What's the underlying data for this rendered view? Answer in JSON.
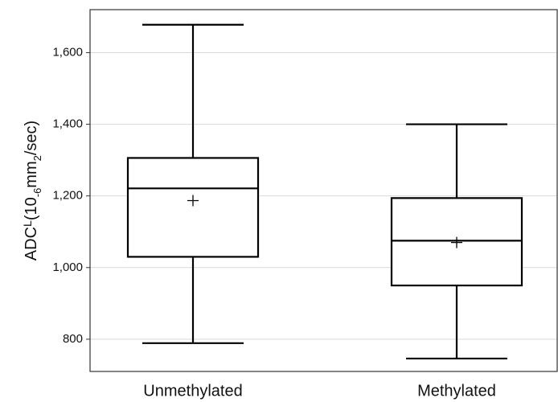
{
  "chart_data": {
    "type": "box",
    "ylabel": [
      "ADC",
      "L",
      "(10",
      "-6",
      "mm",
      "2",
      "/sec)"
    ],
    "categories": [
      "Unmethylated",
      "Methylated"
    ],
    "boxes": [
      {
        "min": 789,
        "q1": 1030,
        "median": 1221,
        "q3": 1306,
        "max": 1678,
        "mean": 1187
      },
      {
        "min": 746,
        "q1": 950,
        "median": 1075,
        "q3": 1194,
        "max": 1400,
        "mean": 1070
      }
    ],
    "ylim": [
      710,
      1720
    ],
    "yticks": [
      {
        "value": 800,
        "label": "800"
      },
      {
        "value": 1000,
        "label": "1,000"
      },
      {
        "value": 1200,
        "label": "1,200"
      },
      {
        "value": 1400,
        "label": "1,400"
      },
      {
        "value": 1600,
        "label": "1,600"
      }
    ],
    "grid": true
  }
}
